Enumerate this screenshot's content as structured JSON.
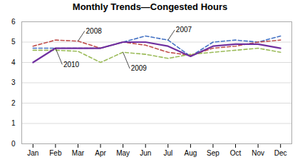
{
  "chart_data": {
    "type": "line",
    "title": "Monthly Trends—Congested Hours",
    "categories": [
      "Jan",
      "Feb",
      "Mar",
      "Apr",
      "May",
      "Jun",
      "Jul",
      "Aug",
      "Sep",
      "Oct",
      "Nov",
      "Dec"
    ],
    "series": [
      {
        "name": "2007",
        "color": "#4472C4",
        "line_style": "dashed",
        "values": [
          4.7,
          4.7,
          4.7,
          4.7,
          5.0,
          5.3,
          5.1,
          4.3,
          5.0,
          5.1,
          5.0,
          5.3
        ]
      },
      {
        "name": "2008",
        "color": "#C0504D",
        "line_style": "dashed",
        "values": [
          4.8,
          5.1,
          5.05,
          4.7,
          5.0,
          4.85,
          4.5,
          4.35,
          4.7,
          4.8,
          5.0,
          5.1
        ]
      },
      {
        "name": "2009",
        "color": "#9BBB59",
        "line_style": "dashed",
        "values": [
          4.6,
          4.6,
          4.55,
          4.0,
          4.5,
          4.4,
          4.2,
          4.4,
          4.5,
          4.6,
          4.7,
          4.5
        ]
      },
      {
        "name": "2010",
        "color": "#7030A0",
        "line_style": "solid",
        "values": [
          4.0,
          4.7,
          4.7,
          4.7,
          5.0,
          5.0,
          4.8,
          4.3,
          4.8,
          4.9,
          4.9,
          4.7
        ]
      }
    ],
    "annotations": [
      {
        "text": "2008",
        "series": "2008",
        "category": "Mar"
      },
      {
        "text": "2007",
        "series": "2007",
        "category": "Jul"
      },
      {
        "text": "2010",
        "series": "2010",
        "category": "Feb"
      },
      {
        "text": "2009",
        "series": "2009",
        "category": "May"
      }
    ],
    "ylim": [
      0,
      6
    ],
    "yticks": [
      0,
      1,
      2,
      3,
      4,
      5,
      6
    ],
    "grid": true
  }
}
